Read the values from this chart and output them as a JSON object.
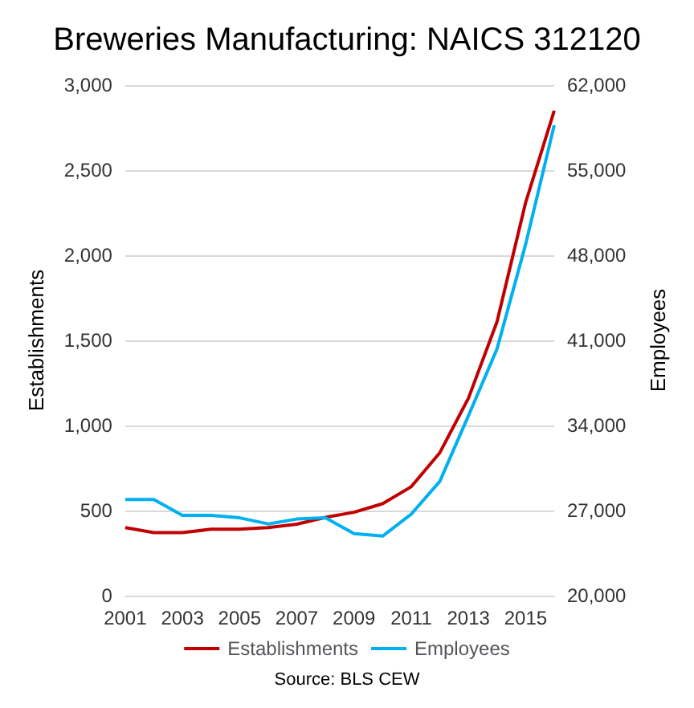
{
  "chart_data": {
    "type": "line",
    "title": "Breweries Manufacturing: NAICS 312120",
    "categories": [
      "2001",
      null,
      "2003",
      null,
      "2005",
      null,
      "2007",
      null,
      "2009",
      null,
      "2011",
      null,
      "2013",
      null,
      "2015",
      null
    ],
    "series": [
      {
        "name": "Establishments",
        "color": "#c00000",
        "values": [
          400,
          370,
          370,
          390,
          390,
          400,
          420,
          460,
          490,
          540,
          640,
          840,
          1160,
          1610,
          2310,
          2850
        ]
      },
      {
        "name": "Employees",
        "color": "#00b0f0",
        "axis": "y2",
        "values": [
          27900,
          27900,
          26600,
          26600,
          26400,
          25900,
          26300,
          26400,
          25100,
          24900,
          26700,
          29400,
          34800,
          40300,
          48900,
          58700
        ]
      }
    ],
    "ylabel": "Establishments",
    "y2label": "Employees",
    "ylim": [
      0,
      3000
    ],
    "yticks": [
      0,
      500,
      {
        "value": 1000,
        "label": "1,000"
      },
      {
        "value": 1500,
        "label": "1,500"
      },
      {
        "value": 2000,
        "label": "2,000"
      },
      {
        "value": 2500,
        "label": "2,500"
      },
      {
        "value": 3000,
        "label": "3,000"
      }
    ],
    "y2lim": [
      20000,
      62000
    ],
    "y2ticks": [
      {
        "value": 20000,
        "label": "20,000"
      },
      {
        "value": 27000,
        "label": "27,000"
      },
      {
        "value": 34000,
        "label": "34,000"
      },
      {
        "value": 41000,
        "label": "41,000"
      },
      {
        "value": 48000,
        "label": "48,000"
      },
      {
        "value": 55000,
        "label": "55,000"
      },
      {
        "value": 62000,
        "label": "62,000"
      }
    ],
    "grid": "y",
    "legend": "bottom",
    "marker": "none",
    "line_style": "solid",
    "annotations": [
      "Source: BLS CEW"
    ]
  }
}
